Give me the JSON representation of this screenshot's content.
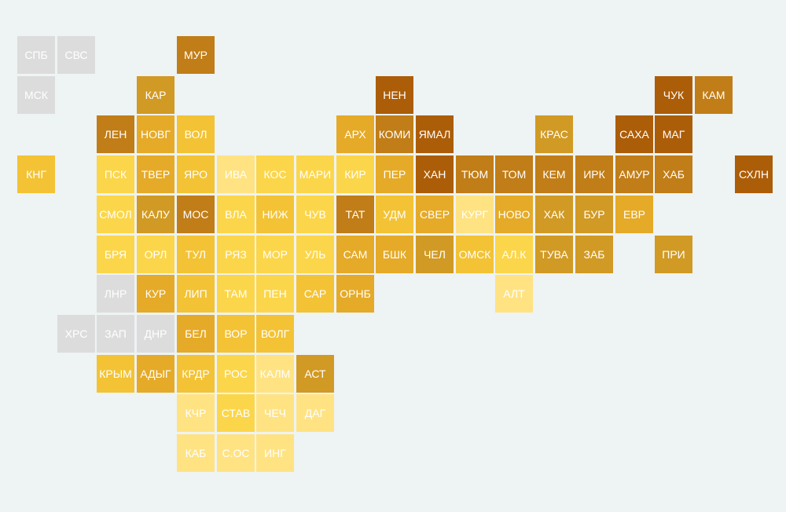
{
  "palette": {
    "grey": "#dcdcdc",
    "c1": "#ffe383",
    "c2": "#fcd64a",
    "c3": "#f3c335",
    "c4": "#e5aa27",
    "c5": "#d19a24",
    "c6": "#c17d17",
    "c7": "#ac5d08"
  },
  "regions": [
    {
      "label": "СПБ",
      "row": 0,
      "col": 0,
      "color": "grey"
    },
    {
      "label": "СВС",
      "row": 0,
      "col": 1,
      "color": "grey"
    },
    {
      "label": "МУР",
      "row": 0,
      "col": 4,
      "color": "c6"
    },
    {
      "label": "МСК",
      "row": 1,
      "col": 0,
      "color": "grey"
    },
    {
      "label": "КАР",
      "row": 1,
      "col": 3,
      "color": "c5"
    },
    {
      "label": "НЕН",
      "row": 1,
      "col": 9,
      "color": "c7"
    },
    {
      "label": "ЧУК",
      "row": 1,
      "col": 16,
      "color": "c7"
    },
    {
      "label": "КАМ",
      "row": 1,
      "col": 17,
      "color": "c6"
    },
    {
      "label": "ЛЕН",
      "row": 2,
      "col": 2,
      "color": "c6"
    },
    {
      "label": "НОВГ",
      "row": 2,
      "col": 3,
      "color": "c4"
    },
    {
      "label": "ВОЛ",
      "row": 2,
      "col": 4,
      "color": "c3"
    },
    {
      "label": "АРХ",
      "row": 2,
      "col": 8,
      "color": "c4"
    },
    {
      "label": "КОМИ",
      "row": 2,
      "col": 9,
      "color": "c6"
    },
    {
      "label": "ЯМАЛ",
      "row": 2,
      "col": 10,
      "color": "c7"
    },
    {
      "label": "КРАС",
      "row": 2,
      "col": 13,
      "color": "c5"
    },
    {
      "label": "САХА",
      "row": 2,
      "col": 15,
      "color": "c7"
    },
    {
      "label": "МАГ",
      "row": 2,
      "col": 16,
      "color": "c7"
    },
    {
      "label": "КНГ",
      "row": 3,
      "col": 0,
      "color": "c3"
    },
    {
      "label": "ПСК",
      "row": 3,
      "col": 2,
      "color": "c2"
    },
    {
      "label": "ТВЕР",
      "row": 3,
      "col": 3,
      "color": "c4"
    },
    {
      "label": "ЯРО",
      "row": 3,
      "col": 4,
      "color": "c3"
    },
    {
      "label": "ИВА",
      "row": 3,
      "col": 5,
      "color": "c1"
    },
    {
      "label": "КОС",
      "row": 3,
      "col": 6,
      "color": "c2"
    },
    {
      "label": "МАРИ",
      "row": 3,
      "col": 7,
      "color": "c2"
    },
    {
      "label": "КИР",
      "row": 3,
      "col": 8,
      "color": "c2"
    },
    {
      "label": "ПЕР",
      "row": 3,
      "col": 9,
      "color": "c4"
    },
    {
      "label": "ХАН",
      "row": 3,
      "col": 10,
      "color": "c7"
    },
    {
      "label": "ТЮМ",
      "row": 3,
      "col": 11,
      "color": "c6"
    },
    {
      "label": "ТОМ",
      "row": 3,
      "col": 12,
      "color": "c6"
    },
    {
      "label": "КЕМ",
      "row": 3,
      "col": 13,
      "color": "c6"
    },
    {
      "label": "ИРК",
      "row": 3,
      "col": 14,
      "color": "c6"
    },
    {
      "label": "АМУР",
      "row": 3,
      "col": 15,
      "color": "c6"
    },
    {
      "label": "ХАБ",
      "row": 3,
      "col": 16,
      "color": "c6"
    },
    {
      "label": "СХЛН",
      "row": 3,
      "col": 18,
      "color": "c7"
    },
    {
      "label": "СМОЛ",
      "row": 4,
      "col": 2,
      "color": "c2"
    },
    {
      "label": "КАЛУ",
      "row": 4,
      "col": 3,
      "color": "c5"
    },
    {
      "label": "МОС",
      "row": 4,
      "col": 4,
      "color": "c6"
    },
    {
      "label": "ВЛА",
      "row": 4,
      "col": 5,
      "color": "c2"
    },
    {
      "label": "НИЖ",
      "row": 4,
      "col": 6,
      "color": "c3"
    },
    {
      "label": "ЧУВ",
      "row": 4,
      "col": 7,
      "color": "c2"
    },
    {
      "label": "ТАТ",
      "row": 4,
      "col": 8,
      "color": "c6"
    },
    {
      "label": "УДМ",
      "row": 4,
      "col": 9,
      "color": "c3"
    },
    {
      "label": "СВЕР",
      "row": 4,
      "col": 10,
      "color": "c4"
    },
    {
      "label": "КУРГ",
      "row": 4,
      "col": 11,
      "color": "c1"
    },
    {
      "label": "НОВО",
      "row": 4,
      "col": 12,
      "color": "c4"
    },
    {
      "label": "ХАК",
      "row": 4,
      "col": 13,
      "color": "c5"
    },
    {
      "label": "БУР",
      "row": 4,
      "col": 14,
      "color": "c5"
    },
    {
      "label": "ЕВР",
      "row": 4,
      "col": 15,
      "color": "c4"
    },
    {
      "label": "БРЯ",
      "row": 5,
      "col": 2,
      "color": "c2"
    },
    {
      "label": "ОРЛ",
      "row": 5,
      "col": 3,
      "color": "c2"
    },
    {
      "label": "ТУЛ",
      "row": 5,
      "col": 4,
      "color": "c3"
    },
    {
      "label": "РЯЗ",
      "row": 5,
      "col": 5,
      "color": "c2"
    },
    {
      "label": "МОР",
      "row": 5,
      "col": 6,
      "color": "c2"
    },
    {
      "label": "УЛЬ",
      "row": 5,
      "col": 7,
      "color": "c2"
    },
    {
      "label": "САМ",
      "row": 5,
      "col": 8,
      "color": "c4"
    },
    {
      "label": "БШК",
      "row": 5,
      "col": 9,
      "color": "c4"
    },
    {
      "label": "ЧЕЛ",
      "row": 5,
      "col": 10,
      "color": "c5"
    },
    {
      "label": "ОМСК",
      "row": 5,
      "col": 11,
      "color": "c3"
    },
    {
      "label": "АЛ.К",
      "row": 5,
      "col": 12,
      "color": "c2"
    },
    {
      "label": "ТУВА",
      "row": 5,
      "col": 13,
      "color": "c5"
    },
    {
      "label": "ЗАБ",
      "row": 5,
      "col": 14,
      "color": "c5"
    },
    {
      "label": "ПРИ",
      "row": 5,
      "col": 16,
      "color": "c5"
    },
    {
      "label": "ЛНР",
      "row": 6,
      "col": 2,
      "color": "grey"
    },
    {
      "label": "КУР",
      "row": 6,
      "col": 3,
      "color": "c4"
    },
    {
      "label": "ЛИП",
      "row": 6,
      "col": 4,
      "color": "c3"
    },
    {
      "label": "ТАМ",
      "row": 6,
      "col": 5,
      "color": "c2"
    },
    {
      "label": "ПЕН",
      "row": 6,
      "col": 6,
      "color": "c2"
    },
    {
      "label": "САР",
      "row": 6,
      "col": 7,
      "color": "c3"
    },
    {
      "label": "ОРНБ",
      "row": 6,
      "col": 8,
      "color": "c4"
    },
    {
      "label": "АЛТ",
      "row": 6,
      "col": 12,
      "color": "c1"
    },
    {
      "label": "ХРС",
      "row": 7,
      "col": 1,
      "color": "grey"
    },
    {
      "label": "ЗАП",
      "row": 7,
      "col": 2,
      "color": "grey"
    },
    {
      "label": "ДНР",
      "row": 7,
      "col": 3,
      "color": "grey"
    },
    {
      "label": "БЕЛ",
      "row": 7,
      "col": 4,
      "color": "c4"
    },
    {
      "label": "ВОР",
      "row": 7,
      "col": 5,
      "color": "c3"
    },
    {
      "label": "ВОЛГ",
      "row": 7,
      "col": 6,
      "color": "c3"
    },
    {
      "label": "КРЫМ",
      "row": 8,
      "col": 2,
      "color": "c3"
    },
    {
      "label": "АДЫГ",
      "row": 8,
      "col": 3,
      "color": "c4"
    },
    {
      "label": "КРДР",
      "row": 8,
      "col": 4,
      "color": "c3"
    },
    {
      "label": "РОС",
      "row": 8,
      "col": 5,
      "color": "c2"
    },
    {
      "label": "КАЛМ",
      "row": 8,
      "col": 6,
      "color": "c1"
    },
    {
      "label": "АСТ",
      "row": 8,
      "col": 7,
      "color": "c5"
    },
    {
      "label": "КЧР",
      "row": 9,
      "col": 4,
      "color": "c1"
    },
    {
      "label": "СТАВ",
      "row": 9,
      "col": 5,
      "color": "c2"
    },
    {
      "label": "ЧЕЧ",
      "row": 9,
      "col": 6,
      "color": "c1"
    },
    {
      "label": "ДАГ",
      "row": 9,
      "col": 7,
      "color": "c1"
    },
    {
      "label": "КАБ",
      "row": 10,
      "col": 4,
      "color": "c1"
    },
    {
      "label": "С.ОС",
      "row": 10,
      "col": 5,
      "color": "c1"
    },
    {
      "label": "ИНГ",
      "row": 10,
      "col": 6,
      "color": "c1"
    }
  ]
}
